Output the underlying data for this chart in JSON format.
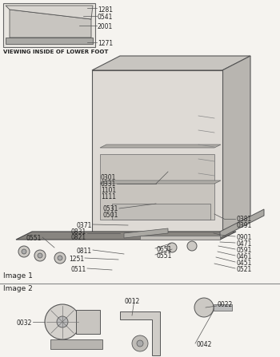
{
  "bg_color": "#f5f3ef",
  "line_color": "#555555",
  "text_color": "#222222",
  "image1_label": "Image 1",
  "image2_label": "Image 2",
  "inset_label": "VIEWING INSIDE OF LOWER FOOT",
  "inset_parts": [
    "1281",
    "0541",
    "2001",
    "1271"
  ],
  "figsize": [
    3.5,
    4.47
  ],
  "dpi": 100
}
